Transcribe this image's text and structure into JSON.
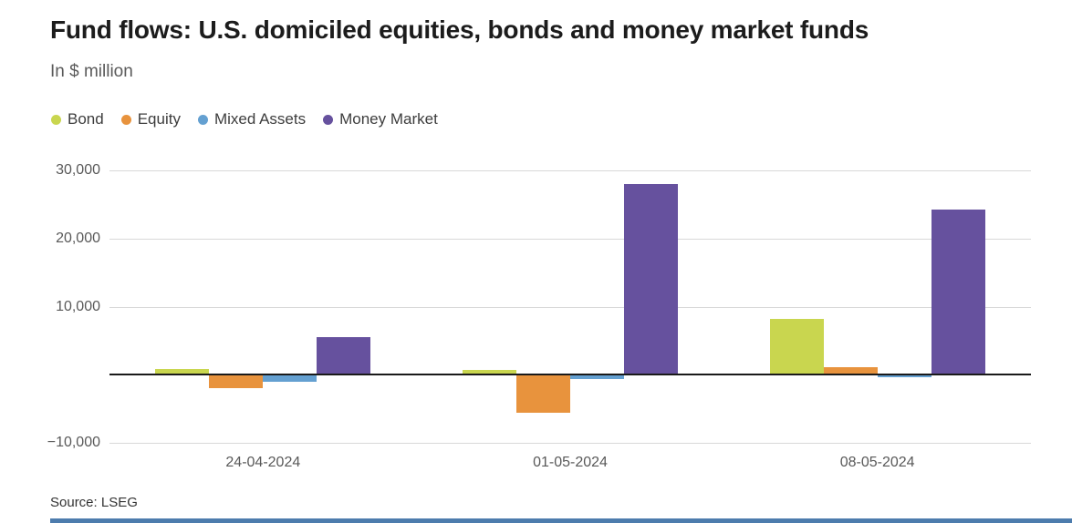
{
  "header": {
    "title": "Fund flows: U.S. domiciled equities, bonds and money market funds",
    "subtitle": "In $ million"
  },
  "source": "Source: LSEG",
  "colors": {
    "bond": "#c9d64f",
    "equity": "#e8933d",
    "mixed_assets": "#64a0d1",
    "money_market": "#66519e",
    "zero_line": "#1a1a1a",
    "gridline": "#d8d8d8",
    "bottom_accent": "#4d7cad"
  },
  "chart_data": {
    "type": "bar",
    "title": "Fund flows: U.S. domiciled equities, bonds and money market funds",
    "ylabel": "In $ million",
    "categories": [
      "24-04-2024",
      "01-05-2024",
      "08-05-2024"
    ],
    "series": [
      {
        "name": "Bond",
        "color": "#c9d64f",
        "values": [
          900,
          700,
          8200
        ]
      },
      {
        "name": "Equity",
        "color": "#e8933d",
        "values": [
          -2000,
          -5600,
          1100
        ]
      },
      {
        "name": "Mixed Assets",
        "color": "#64a0d1",
        "values": [
          -1000,
          -700,
          -400
        ]
      },
      {
        "name": "Money Market",
        "color": "#66519e",
        "values": [
          5500,
          28000,
          24300
        ]
      }
    ],
    "ylim": [
      -10000,
      30000
    ],
    "yticks": [
      30000,
      20000,
      10000,
      -10000
    ],
    "ytick_labels": [
      "30,000",
      "20,000",
      "10,000",
      "−10,000"
    ],
    "zero_baseline": true,
    "grid": true,
    "legend_position": "top-left"
  }
}
